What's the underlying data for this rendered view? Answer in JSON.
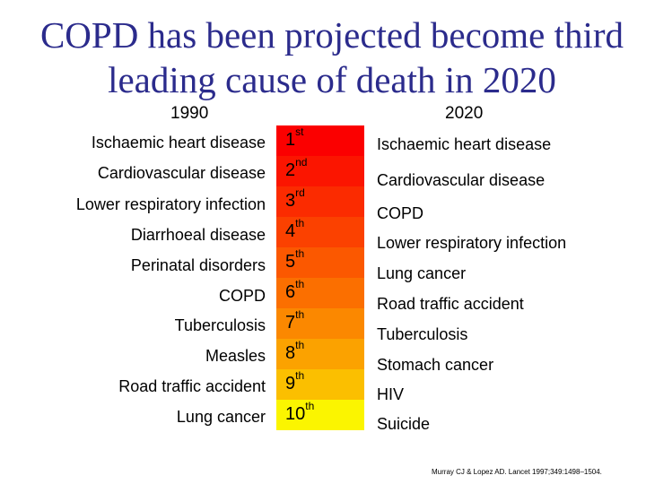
{
  "title_line1": "COPD has been projected become third",
  "title_line2": "leading cause of death in 2020",
  "year_left": "1990",
  "year_right": "2020",
  "list_1990": [
    "Ischaemic heart disease",
    "Cardiovascular disease",
    "Lower respiratory infection",
    "Diarrhoeal disease",
    "Perinatal disorders",
    "COPD",
    "Tuberculosis",
    "Measles",
    "Road traffic accident",
    "Lung cancer"
  ],
  "ranks": [
    {
      "num": "1",
      "suffix": "st"
    },
    {
      "num": "2",
      "suffix": "nd"
    },
    {
      "num": "3",
      "suffix": "rd"
    },
    {
      "num": "4",
      "suffix": "th"
    },
    {
      "num": "5",
      "suffix": "th"
    },
    {
      "num": "6",
      "suffix": "th"
    },
    {
      "num": "7",
      "suffix": "th"
    },
    {
      "num": "8",
      "suffix": "th"
    },
    {
      "num": "9",
      "suffix": "th"
    },
    {
      "num": "10",
      "suffix": "th"
    }
  ],
  "rank_colors": [
    "#fb0000",
    "#fb1500",
    "#fb2b00",
    "#fb4100",
    "#fb5800",
    "#fb6f00",
    "#fb8800",
    "#fba200",
    "#fbbf00",
    "#fbf500"
  ],
  "list_2020": [
    "Ischaemic heart disease",
    "Cardiovascular disease",
    "COPD",
    "Lower respiratory infection",
    "Lung cancer",
    "Road traffic accident",
    "Tuberculosis",
    "Stomach cancer",
    "HIV",
    "Suicide"
  ],
  "citation": "Murray CJ & Lopez AD. Lancet 1997;349:1498–1504."
}
